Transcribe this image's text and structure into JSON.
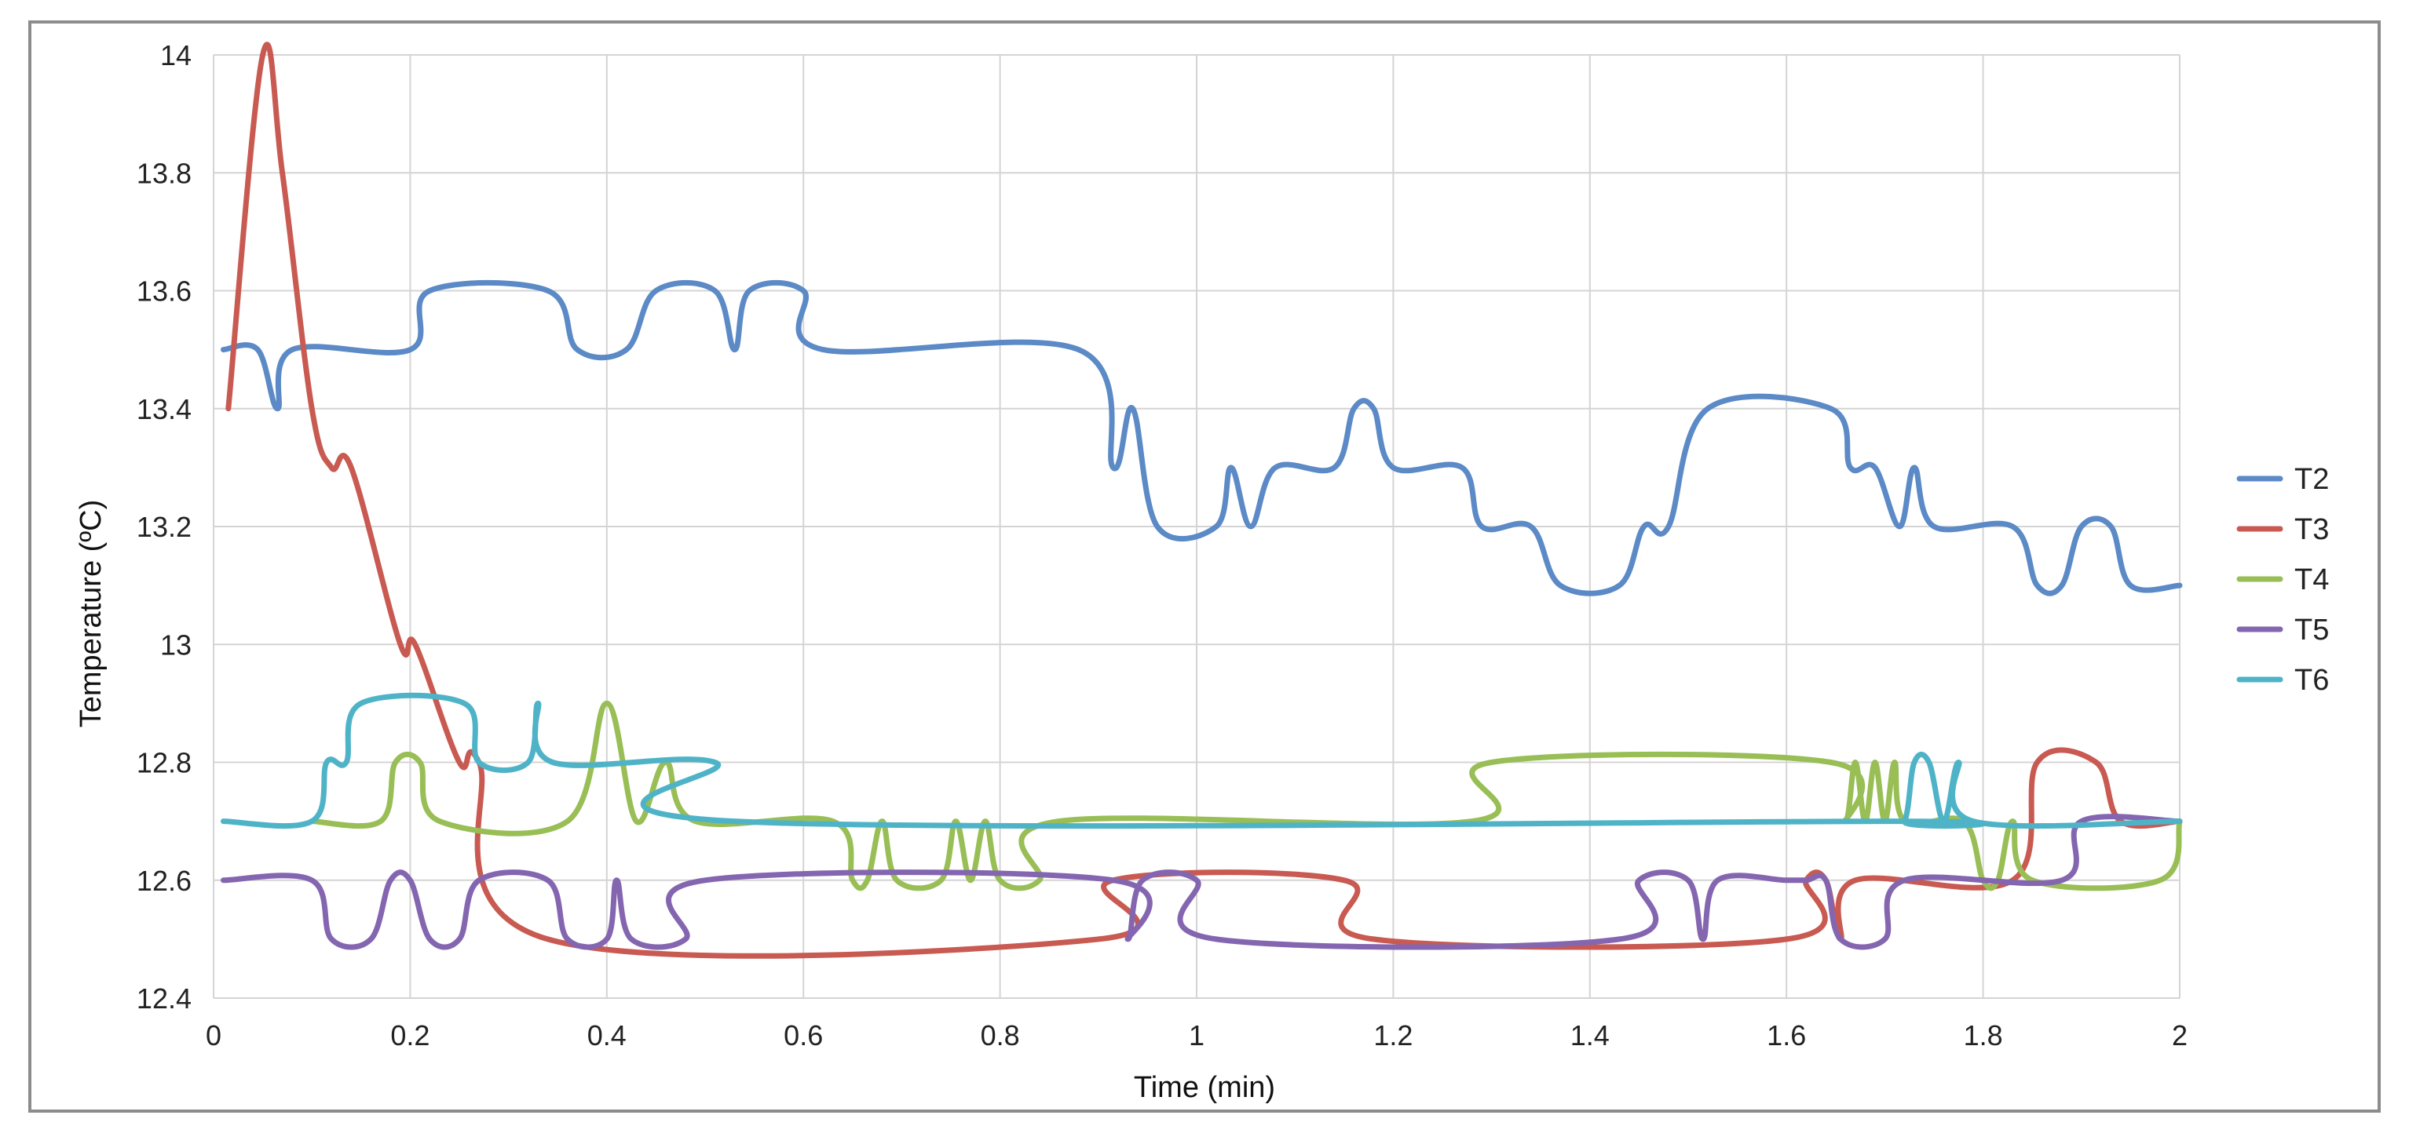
{
  "chart_data": {
    "type": "line",
    "title": "",
    "xlabel": "Time (min)",
    "ylabel": "Temperature (ºC)",
    "xlim": [
      0,
      2
    ],
    "ylim": [
      12.4,
      14
    ],
    "x_ticks": [
      "0",
      "0.2",
      "0.4",
      "0.6",
      "0.8",
      "1",
      "1.2",
      "1.4",
      "1.6",
      "1.8",
      "2"
    ],
    "y_ticks": [
      "14",
      "13.8",
      "13.6",
      "13.4",
      "13.2",
      "13",
      "12.8",
      "12.6",
      "12.4"
    ],
    "grid": true,
    "legend_position": "right",
    "series": [
      {
        "name": "T2",
        "color": "#5b8ac6",
        "points": [
          [
            0.01,
            13.5
          ],
          [
            0.045,
            13.5
          ],
          [
            0.065,
            13.4
          ],
          [
            0.08,
            13.5
          ],
          [
            0.2,
            13.5
          ],
          [
            0.22,
            13.6
          ],
          [
            0.34,
            13.6
          ],
          [
            0.37,
            13.5
          ],
          [
            0.42,
            13.5
          ],
          [
            0.45,
            13.6
          ],
          [
            0.51,
            13.6
          ],
          [
            0.53,
            13.5
          ],
          [
            0.545,
            13.6
          ],
          [
            0.6,
            13.6
          ],
          [
            0.62,
            13.5
          ],
          [
            0.88,
            13.5
          ],
          [
            0.915,
            13.3
          ],
          [
            0.935,
            13.4
          ],
          [
            0.96,
            13.2
          ],
          [
            1.02,
            13.2
          ],
          [
            1.035,
            13.3
          ],
          [
            1.055,
            13.2
          ],
          [
            1.08,
            13.3
          ],
          [
            1.14,
            13.3
          ],
          [
            1.16,
            13.4
          ],
          [
            1.18,
            13.4
          ],
          [
            1.2,
            13.3
          ],
          [
            1.27,
            13.3
          ],
          [
            1.29,
            13.2
          ],
          [
            1.34,
            13.2
          ],
          [
            1.37,
            13.1
          ],
          [
            1.43,
            13.1
          ],
          [
            1.455,
            13.2
          ],
          [
            1.48,
            13.2
          ],
          [
            1.52,
            13.4
          ],
          [
            1.645,
            13.4
          ],
          [
            1.665,
            13.3
          ],
          [
            1.69,
            13.3
          ],
          [
            1.715,
            13.2
          ],
          [
            1.73,
            13.3
          ],
          [
            1.75,
            13.2
          ],
          [
            1.83,
            13.2
          ],
          [
            1.855,
            13.1
          ],
          [
            1.88,
            13.1
          ],
          [
            1.9,
            13.2
          ],
          [
            1.93,
            13.2
          ],
          [
            1.95,
            13.1
          ],
          [
            2.0,
            13.1
          ]
        ]
      },
      {
        "name": "T3",
        "color": "#c85a52",
        "points": [
          [
            0.015,
            13.4
          ],
          [
            0.05,
            14.0
          ],
          [
            0.07,
            13.8
          ],
          [
            0.1,
            13.4
          ],
          [
            0.12,
            13.3
          ],
          [
            0.14,
            13.3
          ],
          [
            0.19,
            13.0
          ],
          [
            0.205,
            13.0
          ],
          [
            0.25,
            12.8
          ],
          [
            0.27,
            12.8
          ],
          [
            0.34,
            12.5
          ],
          [
            0.9,
            12.5
          ],
          [
            0.915,
            12.6
          ],
          [
            1.15,
            12.6
          ],
          [
            1.18,
            12.5
          ],
          [
            1.6,
            12.5
          ],
          [
            1.62,
            12.6
          ],
          [
            1.64,
            12.6
          ],
          [
            1.655,
            12.5
          ],
          [
            1.67,
            12.6
          ],
          [
            1.83,
            12.6
          ],
          [
            1.855,
            12.8
          ],
          [
            1.915,
            12.8
          ],
          [
            1.94,
            12.7
          ],
          [
            2.0,
            12.7
          ]
        ]
      },
      {
        "name": "T4",
        "color": "#98be55",
        "points": [
          [
            0.1,
            12.7
          ],
          [
            0.17,
            12.7
          ],
          [
            0.185,
            12.8
          ],
          [
            0.21,
            12.8
          ],
          [
            0.23,
            12.7
          ],
          [
            0.36,
            12.7
          ],
          [
            0.4,
            12.9
          ],
          [
            0.43,
            12.7
          ],
          [
            0.46,
            12.8
          ],
          [
            0.49,
            12.7
          ],
          [
            0.63,
            12.7
          ],
          [
            0.65,
            12.6
          ],
          [
            0.665,
            12.6
          ],
          [
            0.68,
            12.7
          ],
          [
            0.695,
            12.6
          ],
          [
            0.74,
            12.6
          ],
          [
            0.755,
            12.7
          ],
          [
            0.77,
            12.6
          ],
          [
            0.785,
            12.7
          ],
          [
            0.8,
            12.6
          ],
          [
            0.84,
            12.6
          ],
          [
            0.86,
            12.7
          ],
          [
            1.28,
            12.7
          ],
          [
            1.3,
            12.8
          ],
          [
            1.645,
            12.8
          ],
          [
            1.66,
            12.7
          ],
          [
            1.67,
            12.8
          ],
          [
            1.68,
            12.7
          ],
          [
            1.69,
            12.8
          ],
          [
            1.7,
            12.7
          ],
          [
            1.71,
            12.8
          ],
          [
            1.72,
            12.7
          ],
          [
            1.78,
            12.7
          ],
          [
            1.8,
            12.6
          ],
          [
            1.815,
            12.6
          ],
          [
            1.83,
            12.7
          ],
          [
            1.85,
            12.6
          ],
          [
            1.98,
            12.6
          ],
          [
            2.0,
            12.7
          ]
        ]
      },
      {
        "name": "T5",
        "color": "#8466b0",
        "points": [
          [
            0.01,
            12.6
          ],
          [
            0.1,
            12.6
          ],
          [
            0.12,
            12.5
          ],
          [
            0.16,
            12.5
          ],
          [
            0.18,
            12.6
          ],
          [
            0.2,
            12.6
          ],
          [
            0.22,
            12.5
          ],
          [
            0.25,
            12.5
          ],
          [
            0.27,
            12.6
          ],
          [
            0.34,
            12.6
          ],
          [
            0.36,
            12.5
          ],
          [
            0.4,
            12.5
          ],
          [
            0.41,
            12.6
          ],
          [
            0.425,
            12.5
          ],
          [
            0.48,
            12.5
          ],
          [
            0.5,
            12.6
          ],
          [
            0.915,
            12.6
          ],
          [
            0.93,
            12.5
          ],
          [
            0.945,
            12.6
          ],
          [
            1.0,
            12.6
          ],
          [
            1.02,
            12.5
          ],
          [
            1.43,
            12.5
          ],
          [
            1.45,
            12.6
          ],
          [
            1.5,
            12.6
          ],
          [
            1.515,
            12.5
          ],
          [
            1.53,
            12.6
          ],
          [
            1.6,
            12.6
          ],
          [
            1.62,
            12.6
          ],
          [
            1.64,
            12.6
          ],
          [
            1.655,
            12.5
          ],
          [
            1.7,
            12.5
          ],
          [
            1.72,
            12.6
          ],
          [
            1.88,
            12.6
          ],
          [
            1.9,
            12.7
          ],
          [
            2.0,
            12.7
          ]
        ]
      },
      {
        "name": "T6",
        "color": "#4fb3c8",
        "points": [
          [
            0.01,
            12.7
          ],
          [
            0.1,
            12.7
          ],
          [
            0.115,
            12.8
          ],
          [
            0.135,
            12.8
          ],
          [
            0.15,
            12.9
          ],
          [
            0.255,
            12.9
          ],
          [
            0.27,
            12.8
          ],
          [
            0.32,
            12.8
          ],
          [
            0.33,
            12.9
          ],
          [
            0.345,
            12.8
          ],
          [
            0.51,
            12.8
          ],
          [
            0.53,
            12.7
          ],
          [
            1.7,
            12.7
          ],
          [
            1.72,
            12.7
          ],
          [
            1.73,
            12.8
          ],
          [
            1.745,
            12.8
          ],
          [
            1.76,
            12.7
          ],
          [
            1.775,
            12.8
          ],
          [
            1.79,
            12.7
          ],
          [
            2.0,
            12.7
          ]
        ]
      }
    ]
  }
}
